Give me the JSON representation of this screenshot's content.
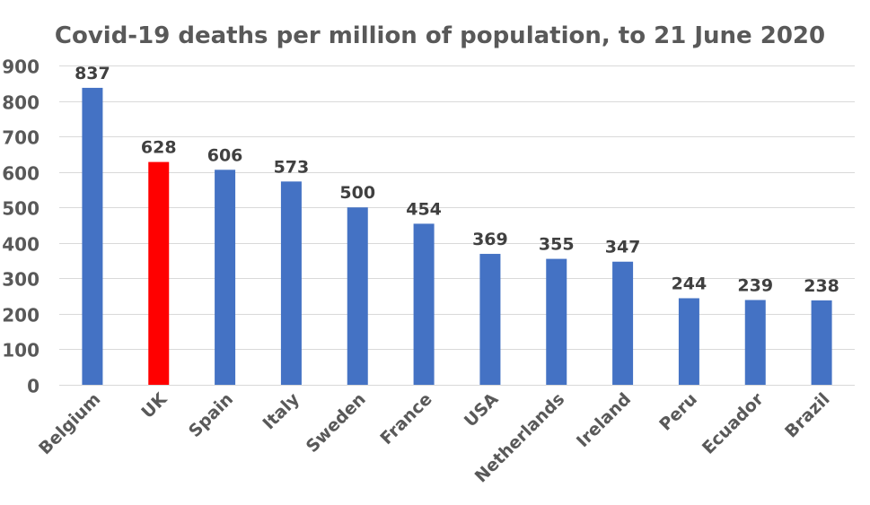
{
  "chart_data": {
    "type": "bar",
    "title": "Covid-19 deaths per million of population, to 21 June 2020",
    "xlabel": "",
    "ylabel": "",
    "categories": [
      "Belgium",
      "UK",
      "Spain",
      "Italy",
      "Sweden",
      "France",
      "USA",
      "Netherlands",
      "Ireland",
      "Peru",
      "Ecuador",
      "Brazil"
    ],
    "values": [
      837,
      628,
      606,
      573,
      500,
      454,
      369,
      355,
      347,
      244,
      239,
      238
    ],
    "data_labels": [
      "837",
      "628",
      "606",
      "573",
      "500",
      "454",
      "369",
      "355",
      "347",
      "244",
      "239",
      "238"
    ],
    "ylim": [
      0,
      900
    ],
    "yticks": [
      0,
      100,
      200,
      300,
      400,
      500,
      600,
      700,
      800,
      900
    ],
    "grid": true,
    "legend": "none",
    "colors": {
      "default_bar": "#4472c4",
      "highlight_bar": "#ff0000",
      "highlight_category": "UK",
      "gridline": "#d9d9d9",
      "axis_text": "#595959",
      "data_label": "#404040"
    }
  }
}
